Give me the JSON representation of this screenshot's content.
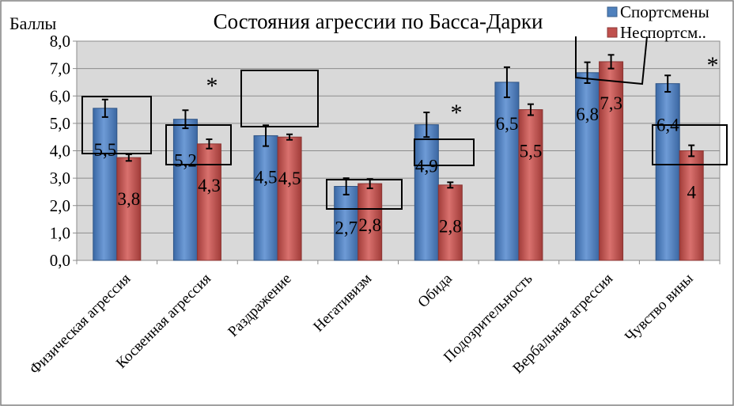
{
  "chart_data": {
    "type": "bar",
    "title": "Состояния агрессии по Басса-Дарки",
    "ylabel": "Баллы",
    "xlabel": "",
    "ylim": [
      0,
      8
    ],
    "yticks": [
      "0,0",
      "1,0",
      "2,0",
      "3,0",
      "4,0",
      "5,0",
      "6,0",
      "7,0",
      "8,0"
    ],
    "grid": true,
    "legend_position": "top-right",
    "categories": [
      "Физическая агрессия",
      "Косвенная агрессия",
      "Раздражение",
      "Негативизм",
      "Обида",
      "Подозрительность",
      "Вербальная агрессия",
      "Чувство вины"
    ],
    "series": [
      {
        "name": "Спортсмены",
        "color": "#4F81BD",
        "values": [
          5.55,
          5.15,
          4.55,
          2.7,
          4.95,
          6.5,
          6.85,
          6.45
        ],
        "errors": [
          0.32,
          0.33,
          0.38,
          0.3,
          0.45,
          0.55,
          0.38,
          0.3
        ],
        "labels": [
          "5,5",
          "5,2",
          "4,5",
          "2,7",
          "4,9",
          "6,5",
          "6,8",
          "6,4"
        ]
      },
      {
        "name": "Неспортсм..",
        "color": "#C0504D",
        "values": [
          3.75,
          4.25,
          4.5,
          2.8,
          2.75,
          5.5,
          7.25,
          4.0
        ],
        "errors": [
          0.12,
          0.17,
          0.1,
          0.17,
          0.1,
          0.2,
          0.25,
          0.2
        ],
        "labels": [
          "3,8",
          "4,3",
          "4,5",
          "2,8",
          "2,8",
          "5,5",
          "7,3",
          "4"
        ]
      }
    ],
    "annotations": {
      "significance_marker": "*",
      "significant_categories": [
        1,
        4,
        7
      ]
    }
  }
}
